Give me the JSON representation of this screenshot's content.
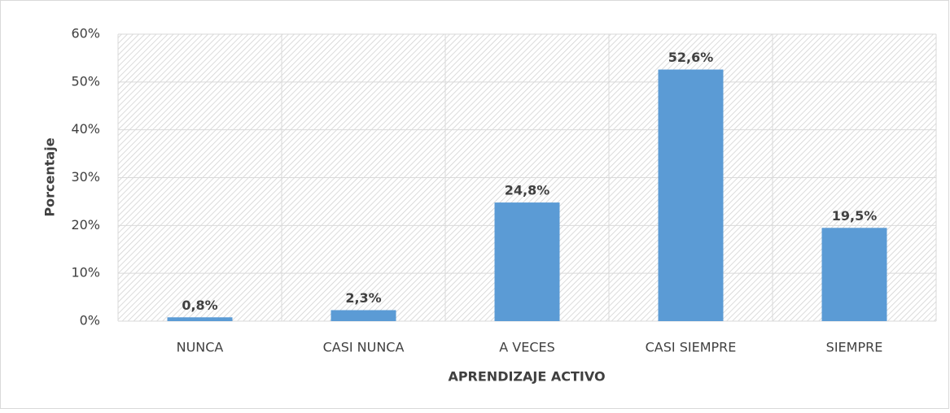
{
  "chart_data": {
    "type": "bar",
    "categories": [
      "NUNCA",
      "CASI NUNCA",
      "A VECES",
      "CASI SIEMPRE",
      "SIEMPRE"
    ],
    "values": [
      0.8,
      2.3,
      24.8,
      52.6,
      19.5
    ],
    "value_labels": [
      "0,8%",
      "2,3%",
      "24,8%",
      "52,6%",
      "19,5%"
    ],
    "color": "#5b9bd5",
    "ylabel": "Porcentaje",
    "xlabel": "APRENDIZAJE ACTIVO",
    "ylim": [
      0,
      60
    ],
    "yticks": [
      {
        "value": 0,
        "label": "0%"
      },
      {
        "value": 10,
        "label": "10%"
      },
      {
        "value": 20,
        "label": "20%"
      },
      {
        "value": 30,
        "label": "30%"
      },
      {
        "value": 40,
        "label": "40%"
      },
      {
        "value": 50,
        "label": "50%"
      },
      {
        "value": 60,
        "label": "60%"
      }
    ],
    "grid": true
  }
}
